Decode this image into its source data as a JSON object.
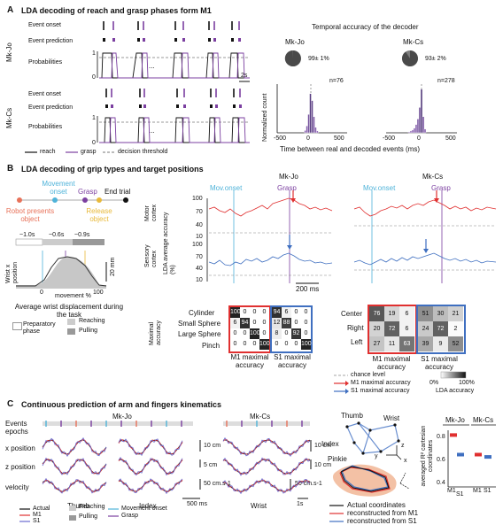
{
  "panelA": {
    "letter": "A",
    "title": "LDA decoding of reach and grasp phases  form M1",
    "mkjo": "Mk-Jo",
    "mkcs": "Mk-Cs",
    "row_event_onset": "Event onset",
    "row_event_prediction": "Event prediction",
    "row_probabilities": "Probabilities",
    "tick1": "1",
    "tick0": "0",
    "ellipsis": "...",
    "scale": "2s",
    "legend_reach": "reach",
    "legend_grasp": "grasp",
    "legend_threshold": "decision threshold",
    "temporal_title": "Temporal accuracy of the decoder",
    "hist_left_title": "Mk-Jo",
    "hist_left_acc": "99± 1%",
    "hist_left_n": "n=76",
    "hist_right_title": "Mk-Cs",
    "hist_right_acc": "93± 2%",
    "hist_right_n": "n=278",
    "ylabel": "Normalized count",
    "xlabel": "Time between real and decoded events (ms)",
    "xticks": [
      "-500",
      "0",
      "500",
      "-500",
      "0",
      "500"
    ]
  },
  "panelB": {
    "letter": "B",
    "title": "LDA decoding of grip types and target positions",
    "movement_onset": "Movement onset",
    "grasp": "Grasp",
    "end_trial": "End trial",
    "robot_presents": "Robot presents object",
    "release_object": "Release object",
    "t1": "~1.0s",
    "t2": "~0.6s",
    "t3": "~0.9s",
    "wrist_ylabel": "Wrist x position",
    "scale_20mm": "20 mm",
    "movement_xlabel": "movement %",
    "x0": "0",
    "x100": "100",
    "avg_label": "Average wrist displacement during the task",
    "prep": "Preparatory phase",
    "reaching": "Reaching",
    "pulling": "Pulling",
    "mkjo": "Mk-Jo",
    "mkcs": "Mk-Cs",
    "mov_onset_short": "Mov.onset",
    "grasp_short": "Grasp",
    "motor_cortex": "Motor cortex",
    "sensory_cortex": "Sensory cortex",
    "lda_ylabel": "LDA average accuracy (%)",
    "yt": [
      "100",
      "70",
      "40",
      "10",
      "100",
      "70",
      "40",
      "10"
    ],
    "scale_200ms": "200 ms",
    "maximal_accuracy": "Maximal accuracy",
    "grip_rows": [
      "Cylinder",
      "Small Sphere",
      "Large Sphere",
      "Pinch"
    ],
    "m1_grip": [
      [
        "100",
        "0",
        "0",
        "0"
      ],
      [
        "6",
        "94",
        "0",
        "0"
      ],
      [
        "0",
        "0",
        "100",
        "0"
      ],
      [
        "0",
        "0",
        "0",
        "100"
      ]
    ],
    "s1_grip": [
      [
        "94",
        "6",
        "0",
        "0"
      ],
      [
        "12",
        "88",
        "0",
        "0"
      ],
      [
        "8",
        "0",
        "92",
        "0"
      ],
      [
        "0",
        "0",
        "0",
        "100"
      ]
    ],
    "pos_rows": [
      "Center",
      "Right",
      "Left"
    ],
    "m1_pos": [
      [
        "76",
        "19",
        "6"
      ],
      [
        "20",
        "72",
        "6"
      ],
      [
        "27",
        "11",
        "63"
      ]
    ],
    "s1_pos": [
      [
        "51",
        "30",
        "21"
      ],
      [
        "24",
        "72",
        "2"
      ],
      [
        "39",
        "9",
        "52"
      ]
    ],
    "m1_max": "M1 maximal accuracy",
    "s1_max": "S1 maximal accuracy",
    "chance": "chance level",
    "legend_m1": "M1 maximal accuracy",
    "legend_s1": "S1 maximal accuracy",
    "cbar_0": "0%",
    "cbar_100": "100%",
    "lda_accuracy": "LDA accuracy"
  },
  "panelC": {
    "letter": "C",
    "title": "Continuous prediction of arm and fingers kinematics",
    "mkjo": "Mk-Jo",
    "mkcs": "Mk-Cs",
    "events_epochs": "Events epochs",
    "x_position": "x position",
    "z_position": "z position",
    "velocity": "velocity",
    "s10cm_1": "10 cm",
    "s5cm": "5 cm",
    "s50_1": "50 cm.s-1",
    "s10cm_2": "10 cm",
    "s10cm_3": "10 cm",
    "s50_2": "50 cm.s-1",
    "thumb": "Thumb",
    "index": "Index",
    "wrist": "Wrist",
    "scale_500ms": "500 ms",
    "scale_1s": "1s",
    "actual": "Actual",
    "m1": "M1",
    "s1": "S1",
    "reaching": "Reaching",
    "pulling": "Pulling",
    "movement_onset": "Movement onset",
    "grasp": "Grasp",
    "hand_thumb": "Thumb",
    "hand_wrist": "Wrist",
    "hand_index": "Index",
    "hand_pinkie": "Pinkie",
    "axis_z": "z",
    "axis_y": "y",
    "axis_x": "x",
    "actual_coords": "Actual coordinates",
    "recon_m1": "reconstructed from M1",
    "recon_s1": "reconstructed from S1",
    "r2_ylabel": "averaged R² cartesian coordinates",
    "r2_ticks": [
      "0.8",
      "0.6",
      "0.4"
    ],
    "r2_mkjo": "Mk-Jo",
    "r2_mkcs": "Mk-Cs",
    "r2_x": [
      "M1",
      "S1",
      "M1",
      "S1"
    ]
  },
  "chart_data": [
    {
      "type": "bar",
      "title": "Mk-Jo",
      "xlabel": "Time between real and decoded events (ms)",
      "ylabel": "Normalized count",
      "x": [
        -100,
        -75,
        -50,
        -25,
        0,
        25,
        50,
        75
      ],
      "values": [
        0.05,
        0.15,
        0.4,
        0.85,
        0.7,
        0.35,
        0.12,
        0.04
      ],
      "xlim": [
        -500,
        500
      ],
      "annotations": [
        "99± 1%",
        "n=76"
      ]
    },
    {
      "type": "bar",
      "title": "Mk-Cs",
      "xlabel": "Time between real and decoded events (ms)",
      "ylabel": "Normalized count",
      "x": [
        -175,
        -150,
        -125,
        -100,
        -75,
        -50,
        -25,
        0,
        25,
        50
      ],
      "values": [
        0.02,
        0.04,
        0.06,
        0.1,
        0.18,
        0.3,
        0.55,
        0.95,
        0.35,
        0.08
      ],
      "xlim": [
        -500,
        500
      ],
      "annotations": [
        "93± 2%",
        "n=278"
      ]
    },
    {
      "type": "scatter",
      "ylabel": "averaged R² cartesian coordinates",
      "categories": [
        "M1",
        "S1",
        "M1",
        "S1"
      ],
      "groups": [
        "Mk-Jo",
        "Mk-Jo",
        "Mk-Cs",
        "Mk-Cs"
      ],
      "values": [
        0.82,
        0.65,
        0.65,
        0.63
      ],
      "colors": [
        "#e03030",
        "#3f6fc0",
        "#e03030",
        "#3f6fc0"
      ]
    }
  ]
}
